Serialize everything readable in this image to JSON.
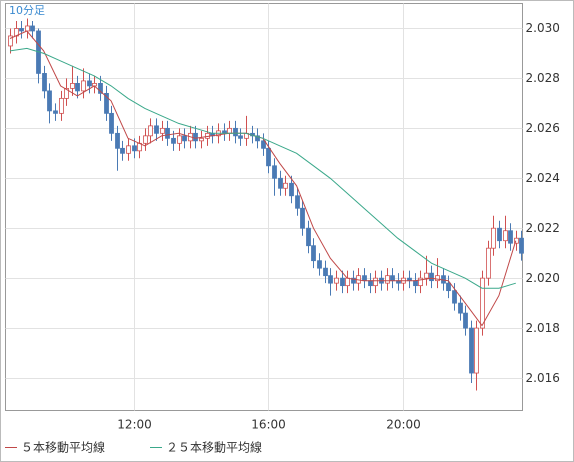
{
  "chart_data": {
    "type": "candlestick",
    "label": "10分足",
    "x": [
      500,
      510,
      520,
      530,
      540,
      550,
      560,
      570,
      580,
      590,
      600,
      610,
      620,
      630,
      640,
      650,
      660,
      670,
      680,
      690,
      700,
      710,
      720,
      730,
      740,
      750,
      760,
      770,
      780,
      790,
      800,
      810,
      820,
      830,
      840,
      850,
      860,
      870,
      880,
      890,
      900,
      910,
      920,
      930,
      940,
      950,
      960,
      970,
      980,
      990,
      1000,
      1010,
      1020,
      1030,
      1040,
      1050,
      1060,
      1070,
      1080,
      1090,
      1100,
      1110,
      1120,
      1130,
      1140,
      1150,
      1160,
      1170,
      1180,
      1190,
      1200,
      1210,
      1220,
      1230,
      1240,
      1250,
      1260,
      1270,
      1280,
      1290,
      1300,
      1310,
      1320,
      1330,
      1340,
      1350,
      1360,
      1370,
      1380,
      1390,
      1400,
      1410
    ],
    "open": [
      2.0293,
      2.0297,
      2.03,
      2.0299,
      2.0301,
      2.0299,
      2.0282,
      2.0275,
      2.0267,
      2.0266,
      2.0272,
      2.0276,
      2.0278,
      2.0275,
      2.0279,
      2.0277,
      2.0278,
      2.0274,
      2.0266,
      2.0258,
      2.0252,
      2.025,
      2.0253,
      2.0251,
      2.0254,
      2.0257,
      2.0261,
      2.0258,
      2.026,
      2.0256,
      2.0254,
      2.0257,
      2.0255,
      2.0258,
      2.0255,
      2.0256,
      2.0258,
      2.0257,
      2.0259,
      2.0258,
      2.026,
      2.0257,
      2.0256,
      2.0258,
      2.0257,
      2.0255,
      2.0252,
      2.0245,
      2.024,
      2.0236,
      2.0238,
      2.0233,
      2.0228,
      2.022,
      2.0213,
      2.0207,
      2.0204,
      2.0201,
      2.0198,
      2.02,
      2.0197,
      2.02,
      2.0198,
      2.0201,
      2.0199,
      2.0197,
      2.02,
      2.0198,
      2.0201,
      2.0199,
      2.0198,
      2.02,
      2.0199,
      2.0197,
      2.02,
      2.0202,
      2.0199,
      2.0201,
      2.0198,
      2.0195,
      2.019,
      2.0186,
      2.018,
      2.0162,
      2.018,
      2.02,
      2.0212,
      2.022,
      2.0215,
      2.0219,
      2.0214,
      2.0216
    ],
    "high": [
      2.03,
      2.0303,
      2.0303,
      2.0304,
      2.0303,
      2.03,
      2.0285,
      2.0278,
      2.027,
      2.0275,
      2.028,
      2.0285,
      2.0281,
      2.0284,
      2.0282,
      2.0281,
      2.0281,
      2.0277,
      2.0269,
      2.0261,
      2.0255,
      2.0256,
      2.0256,
      2.0257,
      2.026,
      2.0264,
      2.0264,
      2.0263,
      2.0263,
      2.0259,
      2.026,
      2.026,
      2.0261,
      2.0261,
      2.0259,
      2.0261,
      2.0261,
      2.0262,
      2.0262,
      2.0263,
      2.0263,
      2.026,
      2.0265,
      2.0261,
      2.026,
      2.0258,
      2.0255,
      2.0248,
      2.0243,
      2.0241,
      2.0241,
      2.0236,
      2.0231,
      2.0223,
      2.0216,
      2.021,
      2.0207,
      2.0204,
      2.0203,
      2.0203,
      2.0203,
      2.0203,
      2.0204,
      2.0204,
      2.0202,
      2.0203,
      2.0203,
      2.0204,
      2.0204,
      2.0202,
      2.0203,
      2.0203,
      2.0202,
      2.0203,
      2.0209,
      2.0205,
      2.0208,
      2.0204,
      2.0201,
      2.0198,
      2.0193,
      2.0189,
      2.0183,
      2.0183,
      2.0203,
      2.0215,
      2.0225,
      2.0223,
      2.0225,
      2.0222,
      2.0219,
      2.0219
    ],
    "low": [
      2.029,
      2.0294,
      2.0296,
      2.0296,
      2.0296,
      2.0278,
      2.0272,
      2.0262,
      2.0263,
      2.0263,
      2.0269,
      2.0273,
      2.0272,
      2.0272,
      2.0274,
      2.0274,
      2.0271,
      2.0263,
      2.0255,
      2.0243,
      2.0247,
      2.0247,
      2.0248,
      2.0248,
      2.0251,
      2.0254,
      2.0255,
      2.0255,
      2.0253,
      2.0251,
      2.0251,
      2.0252,
      2.0252,
      2.0252,
      2.0252,
      2.0253,
      2.0254,
      2.0254,
      2.0255,
      2.0255,
      2.0254,
      2.0253,
      2.0253,
      2.0254,
      2.0252,
      2.0249,
      2.0242,
      2.0233,
      2.0233,
      2.0233,
      2.023,
      2.0225,
      2.0217,
      2.021,
      2.0204,
      2.0201,
      2.0198,
      2.0193,
      2.0195,
      2.0194,
      2.0194,
      2.0195,
      2.0195,
      2.0196,
      2.0194,
      2.0194,
      2.0195,
      2.0195,
      2.0196,
      2.0195,
      2.0195,
      2.0196,
      2.0194,
      2.0194,
      2.0197,
      2.0196,
      2.0196,
      2.0195,
      2.0192,
      2.0187,
      2.0183,
      2.0177,
      2.0158,
      2.0155,
      2.0177,
      2.0197,
      2.0209,
      2.0212,
      2.0212,
      2.0211,
      2.0211,
      2.0207
    ],
    "close": [
      2.0297,
      2.03,
      2.0299,
      2.0301,
      2.0299,
      2.0282,
      2.0275,
      2.0267,
      2.0266,
      2.0272,
      2.0276,
      2.0278,
      2.0275,
      2.0279,
      2.0277,
      2.0278,
      2.0274,
      2.0266,
      2.0258,
      2.0252,
      2.025,
      2.0253,
      2.0251,
      2.0254,
      2.0257,
      2.0261,
      2.0258,
      2.026,
      2.0256,
      2.0254,
      2.0257,
      2.0255,
      2.0258,
      2.0255,
      2.0256,
      2.0258,
      2.0257,
      2.0259,
      2.0258,
      2.026,
      2.0257,
      2.0256,
      2.0258,
      2.0257,
      2.0255,
      2.0252,
      2.0245,
      2.024,
      2.0236,
      2.0238,
      2.0233,
      2.0228,
      2.022,
      2.0213,
      2.0207,
      2.0204,
      2.0201,
      2.0198,
      2.02,
      2.0197,
      2.02,
      2.0198,
      2.0201,
      2.0199,
      2.0197,
      2.02,
      2.0198,
      2.0201,
      2.0199,
      2.0198,
      2.02,
      2.0199,
      2.0197,
      2.02,
      2.0202,
      2.0199,
      2.0201,
      2.0198,
      2.0195,
      2.019,
      2.0186,
      2.018,
      2.0162,
      2.018,
      2.02,
      2.0212,
      2.022,
      2.0215,
      2.0219,
      2.0214,
      2.0216,
      2.021
    ],
    "up_color": "#d05050",
    "down_color": "#4a7ab4",
    "series": [
      {
        "name": "５本移動平均線",
        "color": "#c04848",
        "x": [
          500,
          530,
          560,
          590,
          620,
          650,
          680,
          710,
          740,
          770,
          800,
          830,
          860,
          890,
          920,
          950,
          980,
          1010,
          1040,
          1070,
          1100,
          1130,
          1160,
          1190,
          1220,
          1250,
          1280,
          1310,
          1340,
          1370,
          1400
        ],
        "values": [
          2.0296,
          2.0299,
          2.0291,
          2.0277,
          2.0273,
          2.0277,
          2.0271,
          2.0256,
          2.0253,
          2.0257,
          2.0258,
          2.0256,
          2.0257,
          2.0258,
          2.0258,
          2.0256,
          2.0246,
          2.0237,
          2.022,
          2.0208,
          2.02,
          2.0199,
          2.0199,
          2.0199,
          2.0199,
          2.02,
          2.0199,
          2.019,
          2.0181,
          2.0193,
          2.0215
        ]
      },
      {
        "name": "２５本移動平均線",
        "color": "#3aa88a",
        "x": [
          500,
          530,
          560,
          590,
          620,
          650,
          680,
          710,
          740,
          770,
          800,
          830,
          860,
          890,
          920,
          950,
          980,
          1010,
          1040,
          1070,
          1100,
          1130,
          1160,
          1190,
          1220,
          1250,
          1280,
          1310,
          1340,
          1370,
          1400
        ],
        "values": [
          2.0291,
          2.0292,
          2.029,
          2.0287,
          2.0284,
          2.0281,
          2.0277,
          2.0272,
          2.0268,
          2.0265,
          2.0262,
          2.026,
          2.0258,
          2.0258,
          2.0258,
          2.0256,
          2.0253,
          2.025,
          2.0245,
          2.024,
          2.0234,
          2.0228,
          2.0222,
          2.0216,
          2.0211,
          2.0206,
          2.0203,
          2.02,
          2.0196,
          2.0196,
          2.0198
        ]
      }
    ],
    "xlim": [
      492,
      1412
    ],
    "ylim": [
      2.0147,
      2.031
    ],
    "xticks": [
      {
        "value": 720,
        "label": "12:00"
      },
      {
        "value": 960,
        "label": "16:00"
      },
      {
        "value": 1200,
        "label": "20:00"
      }
    ],
    "yticks": [
      2.016,
      2.018,
      {
        "value": 2.02,
        "label": "2.020"
      },
      2.022,
      2.024,
      2.026,
      2.028,
      {
        "value": 2.03,
        "label": "2.030"
      }
    ],
    "grid": true
  }
}
